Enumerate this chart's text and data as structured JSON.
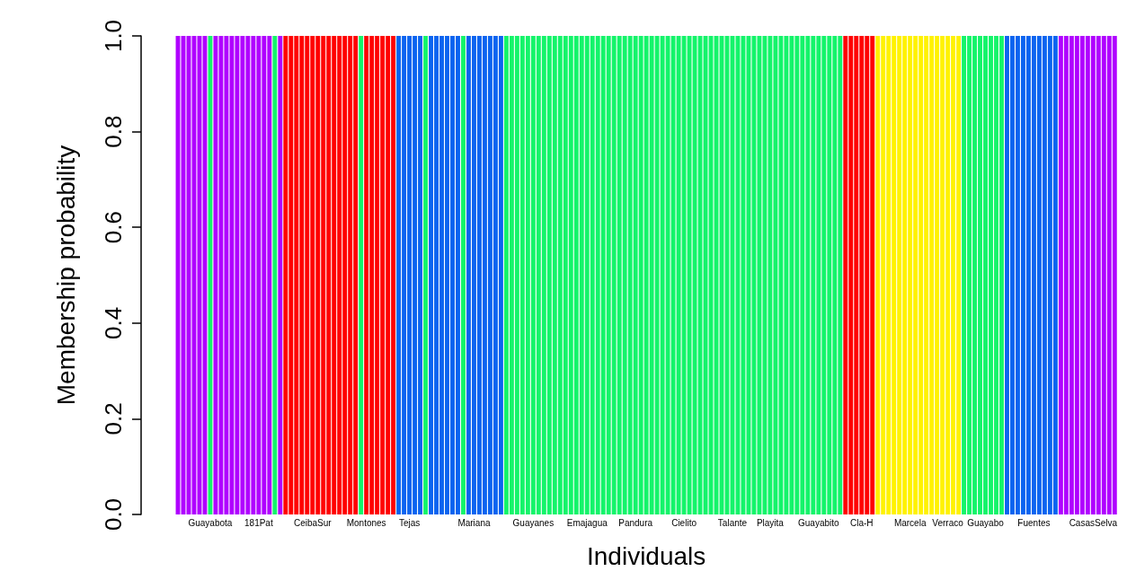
{
  "chart_data": {
    "type": "bar",
    "xlabel": "Individuals",
    "ylabel": "Membership probability",
    "categories": [
      null,
      null,
      null,
      null,
      null,
      null,
      "Guayabota",
      null,
      null,
      null,
      null,
      null,
      null,
      null,
      null,
      "181Pat",
      null,
      null,
      null,
      null,
      null,
      null,
      null,
      null,
      null,
      "CeibaSur",
      null,
      null,
      null,
      null,
      null,
      null,
      null,
      null,
      null,
      "Montones",
      null,
      null,
      null,
      null,
      null,
      null,
      null,
      "Tejas",
      null,
      null,
      null,
      null,
      null,
      null,
      null,
      null,
      null,
      null,
      null,
      "Mariana",
      null,
      null,
      null,
      null,
      null,
      null,
      null,
      null,
      null,
      null,
      "Guayanes",
      null,
      null,
      null,
      null,
      null,
      null,
      null,
      null,
      null,
      "Emajagua",
      null,
      null,
      null,
      null,
      null,
      null,
      null,
      null,
      "Pandura",
      null,
      null,
      null,
      null,
      null,
      null,
      null,
      null,
      "Cielito",
      null,
      null,
      null,
      null,
      null,
      null,
      null,
      null,
      "Talante",
      null,
      null,
      null,
      null,
      null,
      null,
      "Playita",
      null,
      null,
      null,
      null,
      null,
      null,
      null,
      null,
      "Guayabito",
      null,
      null,
      null,
      null,
      null,
      null,
      null,
      "Cla-H",
      null,
      null,
      null,
      null,
      null,
      null,
      null,
      null,
      "Marcela",
      null,
      null,
      null,
      null,
      null,
      null,
      "Verraco",
      null,
      null,
      null,
      null,
      null,
      null,
      "Guayabo",
      null,
      null,
      null,
      null,
      null,
      null,
      null,
      null,
      "Fuentes",
      null,
      null,
      null,
      null,
      null,
      null,
      null,
      null,
      null,
      null,
      "CasasSelva",
      null,
      null,
      null,
      null
    ],
    "values": [
      1,
      1,
      1,
      1,
      1,
      1,
      1,
      1,
      1,
      1,
      1,
      1,
      1,
      1,
      1,
      1,
      1,
      1,
      1,
      1,
      1,
      1,
      1,
      1,
      1,
      1,
      1,
      1,
      1,
      1,
      1,
      1,
      1,
      1,
      1,
      1,
      1,
      1,
      1,
      1,
      1,
      1,
      1,
      1,
      1,
      1,
      1,
      1,
      1,
      1,
      1,
      1,
      1,
      1,
      1,
      1,
      1,
      1,
      1,
      1,
      1,
      1,
      1,
      1,
      1,
      1,
      1,
      1,
      1,
      1,
      1,
      1,
      1,
      1,
      1,
      1,
      1,
      1,
      1,
      1,
      1,
      1,
      1,
      1,
      1,
      1,
      1,
      1,
      1,
      1,
      1,
      1,
      1,
      1,
      1,
      1,
      1,
      1,
      1,
      1,
      1,
      1,
      1,
      1,
      1,
      1,
      1,
      1,
      1,
      1,
      1,
      1,
      1,
      1,
      1,
      1,
      1,
      1,
      1,
      1,
      1,
      1,
      1,
      1,
      1,
      1,
      1,
      1,
      1,
      1,
      1,
      1,
      1,
      1,
      1,
      1,
      1,
      1,
      1,
      1,
      1,
      1,
      1,
      1,
      1,
      1,
      1,
      1,
      1,
      1,
      1,
      1,
      1,
      1,
      1,
      1,
      1,
      1,
      1,
      1,
      1,
      1,
      1,
      1,
      1,
      1,
      1,
      1,
      1,
      1,
      1,
      1,
      1,
      1,
      1
    ],
    "colors": [
      "#b000ff",
      "#b000ff",
      "#b000ff",
      "#b000ff",
      "#b000ff",
      "#b000ff",
      "#14f46a",
      "#b000ff",
      "#b000ff",
      "#b000ff",
      "#b000ff",
      "#b000ff",
      "#b000ff",
      "#b000ff",
      "#b000ff",
      "#b000ff",
      "#b000ff",
      "#b000ff",
      "#14f46a",
      "#b000ff",
      "#ff0000",
      "#ff0000",
      "#ff0000",
      "#ff0000",
      "#ff0000",
      "#ff0000",
      "#ff0000",
      "#ff0000",
      "#ff0000",
      "#ff0000",
      "#ff0000",
      "#ff0000",
      "#ff0000",
      "#ff0000",
      "#14f46a",
      "#ff0000",
      "#ff0000",
      "#ff0000",
      "#ff0000",
      "#ff0000",
      "#ff0000",
      "#0a64f0",
      "#0a64f0",
      "#0a64f0",
      "#0a64f0",
      "#0a64f0",
      "#14f46a",
      "#0a64f0",
      "#0a64f0",
      "#0a64f0",
      "#0a64f0",
      "#0a64f0",
      "#0a64f0",
      "#14f46a",
      "#0a64f0",
      "#0a64f0",
      "#0a64f0",
      "#0a64f0",
      "#0a64f0",
      "#0a64f0",
      "#0a64f0",
      "#14f46a",
      "#14f46a",
      "#14f46a",
      "#14f46a",
      "#14f46a",
      "#14f46a",
      "#14f46a",
      "#14f46a",
      "#14f46a",
      "#14f46a",
      "#14f46a",
      "#14f46a",
      "#14f46a",
      "#14f46a",
      "#14f46a",
      "#14f46a",
      "#14f46a",
      "#14f46a",
      "#14f46a",
      "#14f46a",
      "#14f46a",
      "#14f46a",
      "#14f46a",
      "#14f46a",
      "#14f46a",
      "#14f46a",
      "#14f46a",
      "#14f46a",
      "#14f46a",
      "#14f46a",
      "#14f46a",
      "#14f46a",
      "#14f46a",
      "#14f46a",
      "#14f46a",
      "#14f46a",
      "#14f46a",
      "#14f46a",
      "#14f46a",
      "#14f46a",
      "#14f46a",
      "#14f46a",
      "#14f46a",
      "#14f46a",
      "#14f46a",
      "#14f46a",
      "#14f46a",
      "#14f46a",
      "#14f46a",
      "#14f46a",
      "#14f46a",
      "#14f46a",
      "#14f46a",
      "#14f46a",
      "#14f46a",
      "#14f46a",
      "#14f46a",
      "#14f46a",
      "#14f46a",
      "#14f46a",
      "#14f46a",
      "#14f46a",
      "#14f46a",
      "#ff0000",
      "#ff0000",
      "#ff0000",
      "#ff0000",
      "#ff0000",
      "#ff0000",
      "#fff200",
      "#fff200",
      "#fff200",
      "#fff200",
      "#fff200",
      "#fff200",
      "#fff200",
      "#fff200",
      "#fff200",
      "#fff200",
      "#fff200",
      "#fff200",
      "#fff200",
      "#fff200",
      "#fff200",
      "#fff200",
      "#14f46a",
      "#14f46a",
      "#14f46a",
      "#14f46a",
      "#14f46a",
      "#14f46a",
      "#14f46a",
      "#14f46a",
      "#0a64f0",
      "#0a64f0",
      "#0a64f0",
      "#0a64f0",
      "#0a64f0",
      "#0a64f0",
      "#0a64f0",
      "#0a64f0",
      "#0a64f0",
      "#0a64f0",
      "#b000ff",
      "#b000ff",
      "#b000ff",
      "#b000ff",
      "#b000ff",
      "#b000ff",
      "#b000ff",
      "#b000ff",
      "#b000ff",
      "#b000ff",
      "#b000ff"
    ],
    "ylim": [
      0,
      1
    ],
    "yticks": [
      {
        "value": 0,
        "label": "0.0"
      },
      0.2,
      0.4,
      0.6,
      0.8,
      {
        "value": 1,
        "label": "1.0"
      }
    ]
  }
}
